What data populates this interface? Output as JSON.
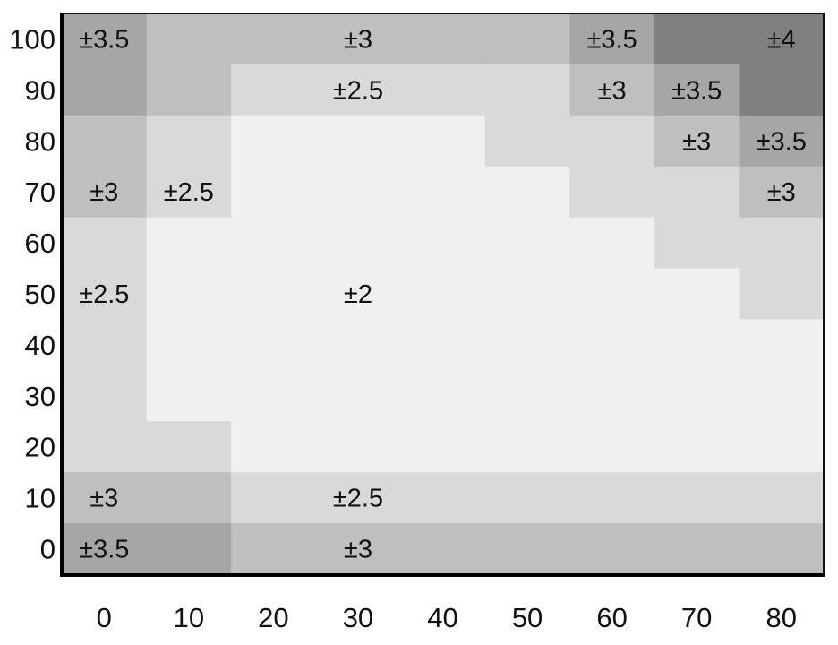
{
  "chart_data": {
    "type": "heatmap",
    "title": "",
    "xlabel": "",
    "ylabel": "",
    "x": [
      0,
      10,
      20,
      30,
      40,
      50,
      60,
      70,
      80
    ],
    "y": [
      100,
      90,
      80,
      70,
      60,
      50,
      40,
      30,
      20,
      10,
      0
    ],
    "x_tick_labels": [
      "0",
      "10",
      "20",
      "30",
      "40",
      "50",
      "60",
      "70",
      "80"
    ],
    "y_tick_labels": [
      "100",
      "90",
      "80",
      "70",
      "60",
      "50",
      "40",
      "30",
      "20",
      "10",
      "0"
    ],
    "values_rows_top_to_bottom": [
      [
        3.5,
        3,
        3,
        3,
        3,
        3,
        3.5,
        4,
        4
      ],
      [
        3.5,
        3,
        2.5,
        2.5,
        2.5,
        2.5,
        3,
        3.5,
        4
      ],
      [
        3,
        2.5,
        2,
        2,
        2,
        2.5,
        2.5,
        3,
        3.5
      ],
      [
        3,
        2.5,
        2,
        2,
        2,
        2,
        2.5,
        2.5,
        3
      ],
      [
        2.5,
        2,
        2,
        2,
        2,
        2,
        2,
        2.5,
        2.5
      ],
      [
        2.5,
        2,
        2,
        2,
        2,
        2,
        2,
        2,
        2.5
      ],
      [
        2.5,
        2,
        2,
        2,
        2,
        2,
        2,
        2,
        2
      ],
      [
        2.5,
        2,
        2,
        2,
        2,
        2,
        2,
        2,
        2
      ],
      [
        2.5,
        2.5,
        2,
        2,
        2,
        2,
        2,
        2,
        2
      ],
      [
        3,
        3,
        2.5,
        2.5,
        2.5,
        2.5,
        2.5,
        2.5,
        2.5
      ],
      [
        3.5,
        3.5,
        3,
        3,
        3,
        3,
        3,
        3,
        3
      ]
    ],
    "annotations": [
      {
        "x": 0,
        "y": 100,
        "text": "±3.5"
      },
      {
        "x": 30,
        "y": 100,
        "text": "±3"
      },
      {
        "x": 60,
        "y": 100,
        "text": "±3.5"
      },
      {
        "x": 80,
        "y": 100,
        "text": "±4"
      },
      {
        "x": 30,
        "y": 90,
        "text": "±2.5"
      },
      {
        "x": 60,
        "y": 90,
        "text": "±3"
      },
      {
        "x": 70,
        "y": 90,
        "text": "±3.5"
      },
      {
        "x": 70,
        "y": 80,
        "text": "±3"
      },
      {
        "x": 80,
        "y": 80,
        "text": "±3.5"
      },
      {
        "x": 0,
        "y": 70,
        "text": "±3"
      },
      {
        "x": 10,
        "y": 70,
        "text": "±2.5"
      },
      {
        "x": 80,
        "y": 70,
        "text": "±3"
      },
      {
        "x": 0,
        "y": 50,
        "text": "±2.5"
      },
      {
        "x": 30,
        "y": 50,
        "text": "±2"
      },
      {
        "x": 0,
        "y": 10,
        "text": "±3"
      },
      {
        "x": 30,
        "y": 10,
        "text": "±2.5"
      },
      {
        "x": 0,
        "y": 0,
        "text": "±3.5"
      },
      {
        "x": 30,
        "y": 0,
        "text": "±3"
      }
    ],
    "color_scale": {
      "2": "#f0f0f0",
      "2.5": "#d9d9d9",
      "3": "#bfbfbf",
      "3.5": "#a6a6a6",
      "4": "#808080"
    },
    "grid": false,
    "legend": "none"
  }
}
